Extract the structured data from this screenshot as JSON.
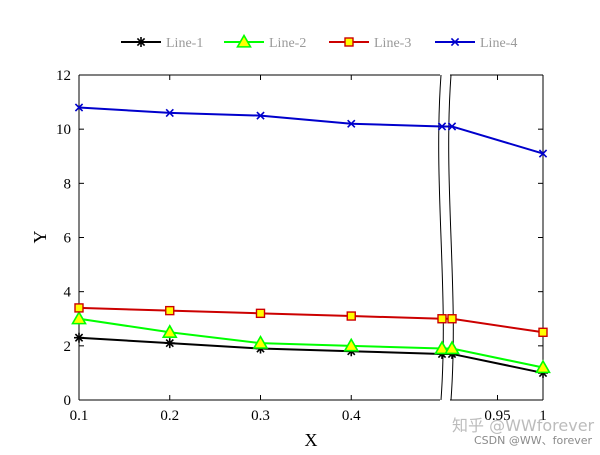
{
  "chart_data": {
    "type": "line",
    "title": "",
    "xlabel": "X",
    "ylabel": "Y",
    "ylim": [
      0,
      12
    ],
    "yticks": [
      "0",
      "2",
      "4",
      "6",
      "8",
      "10",
      "12"
    ],
    "xtick_labels_left": [
      "0.1",
      "0.2",
      "0.3",
      "0.4"
    ],
    "xtick_labels_right": [
      "0.95",
      "1"
    ],
    "broken_axis": true,
    "x": [
      0.1,
      0.2,
      0.3,
      0.4,
      0.5,
      0.9,
      1.0
    ],
    "series": [
      {
        "name": "Line-1",
        "color": "#000000",
        "marker": "asterisk",
        "values": [
          2.3,
          2.1,
          1.9,
          1.8,
          1.7,
          1.7,
          1.0
        ]
      },
      {
        "name": "Line-2",
        "color": "#00ff00",
        "marker": "triangle",
        "values": [
          3.0,
          2.5,
          2.1,
          2.0,
          1.9,
          1.9,
          1.2
        ]
      },
      {
        "name": "Line-3",
        "color": "#cc0000",
        "marker": "square",
        "values": [
          3.4,
          3.3,
          3.2,
          3.1,
          3.0,
          3.0,
          2.5
        ]
      },
      {
        "name": "Line-4",
        "color": "#0000cc",
        "marker": "x",
        "values": [
          10.8,
          10.6,
          10.5,
          10.2,
          10.1,
          10.1,
          9.1
        ]
      }
    ],
    "legend_position": "top",
    "grid": false
  },
  "watermark": {
    "line1": "知乎 @WWforever",
    "line2": "CSDN @WW、forever"
  }
}
